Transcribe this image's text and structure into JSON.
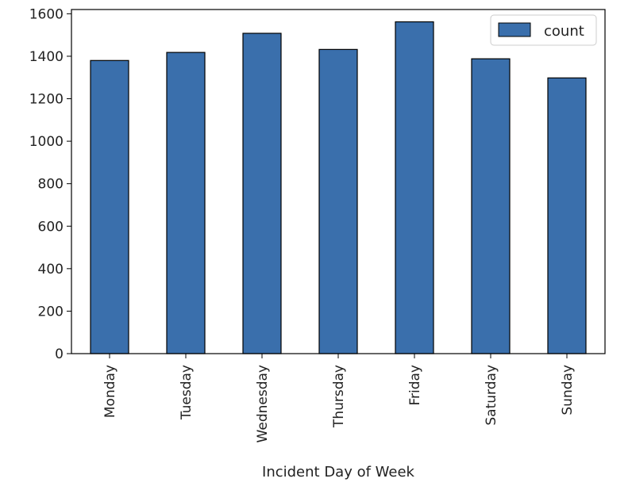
{
  "chart_data": {
    "type": "bar",
    "categories": [
      "Monday",
      "Tuesday",
      "Wednesday",
      "Thursday",
      "Friday",
      "Saturday",
      "Sunday"
    ],
    "series": [
      {
        "name": "count",
        "values": [
          1380,
          1418,
          1508,
          1432,
          1562,
          1388,
          1298
        ],
        "color": "#3a6fac"
      }
    ],
    "xlabel": "Incident Day of Week",
    "ylabel": "",
    "ylim": [
      0,
      1620
    ],
    "yticks": [
      0,
      200,
      400,
      600,
      800,
      1000,
      1200,
      1400,
      1600
    ],
    "legend": {
      "position": "top-right",
      "entries": [
        "count"
      ]
    },
    "grid": false,
    "bar_edge_color": "#000000"
  }
}
